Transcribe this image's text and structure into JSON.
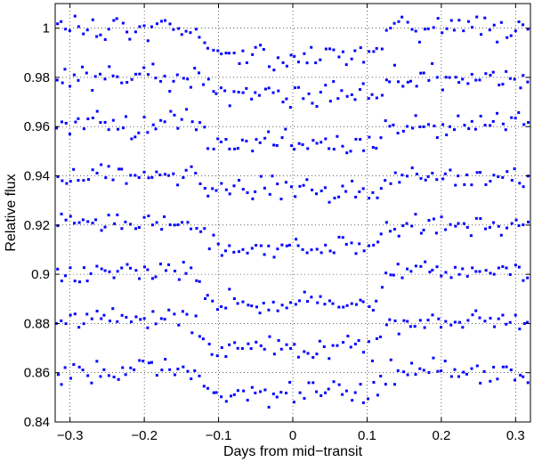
{
  "chart_data": {
    "type": "scatter",
    "title": "",
    "xlabel": "Days from mid−transit",
    "ylabel": "Relative flux",
    "xlim": [
      -0.32,
      0.32
    ],
    "ylim": [
      0.84,
      1.01
    ],
    "xticks": [
      -0.3,
      -0.2,
      -0.1,
      0,
      0.1,
      0.2,
      0.3
    ],
    "yticks": [
      0.84,
      0.86,
      0.88,
      0.9,
      0.92,
      0.94,
      0.96,
      0.98,
      1
    ],
    "xtick_labels": [
      "−0.3",
      "−0.2",
      "−0.1",
      "0",
      "0.1",
      "0.2",
      "0.3"
    ],
    "ytick_labels": [
      "0.84",
      "0.86",
      "0.88",
      "0.9",
      "0.92",
      "0.94",
      "0.96",
      "0.98",
      "1"
    ],
    "grid": true,
    "marker_color": "#0000ff",
    "transit_shape": {
      "ingress_start": -0.132,
      "ingress_end": -0.112,
      "egress_start": 0.112,
      "egress_end": 0.132
    },
    "series": [
      {
        "baseline": 1.0,
        "depth": 0.011,
        "amp": 0.003,
        "seed": 11
      },
      {
        "baseline": 0.98,
        "depth": 0.007,
        "amp": 0.003,
        "seed": 23
      },
      {
        "baseline": 0.961,
        "depth": 0.008,
        "amp": 0.003,
        "seed": 37
      },
      {
        "baseline": 0.94,
        "depth": 0.006,
        "amp": 0.0028,
        "seed": 41
      },
      {
        "baseline": 0.92,
        "depth": 0.009,
        "amp": 0.0028,
        "seed": 53
      },
      {
        "baseline": 0.901,
        "depth": 0.013,
        "amp": 0.0028,
        "seed": 67
      },
      {
        "baseline": 0.881,
        "depth": 0.011,
        "amp": 0.0028,
        "seed": 79
      },
      {
        "baseline": 0.861,
        "depth": 0.009,
        "amp": 0.003,
        "seed": 97
      }
    ],
    "n_points_per_series": 110
  }
}
